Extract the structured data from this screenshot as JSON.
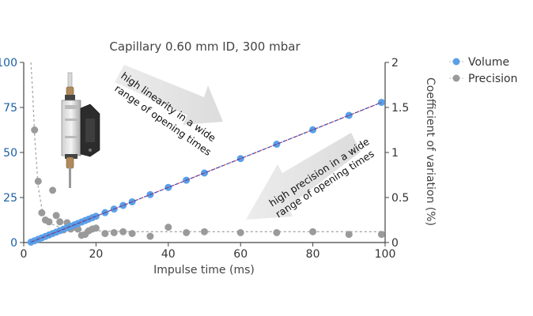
{
  "chart_data": {
    "type": "scatter",
    "title": "Capillary 0.60 mm ID, 300 mbar",
    "xlabel": "Impulse time (ms)",
    "ylabel": "",
    "y2label": "Coefficient of variation (%)",
    "xlim": [
      0,
      100
    ],
    "ylim": [
      0,
      100
    ],
    "y2lim": [
      0,
      2
    ],
    "x_ticks": [
      "0",
      "20",
      "40",
      "60",
      "80",
      "100"
    ],
    "y_ticks": [
      "0",
      "25",
      "50",
      "75",
      "100"
    ],
    "y2_ticks": [
      "0",
      "0.5",
      "1",
      "1.5",
      "2"
    ],
    "legend_position": "top-right",
    "series": [
      {
        "name": "Volume",
        "axis": "left",
        "color": "#5aa0e8",
        "x": [
          2,
          3,
          4,
          5,
          6,
          7,
          8,
          9,
          10,
          11,
          12,
          13,
          14,
          15,
          16,
          17,
          18,
          19,
          20,
          22.5,
          25,
          27.5,
          30,
          35,
          40,
          45,
          50,
          60,
          70,
          80,
          90,
          99
        ],
        "y": [
          0.2,
          1.0,
          1.8,
          2.6,
          3.4,
          4.2,
          5.0,
          5.8,
          6.6,
          7.4,
          8.2,
          9.0,
          9.8,
          10.6,
          11.4,
          12.2,
          13.0,
          13.8,
          14.6,
          16.6,
          18.6,
          20.6,
          22.6,
          26.6,
          30.6,
          34.6,
          38.6,
          46.6,
          54.6,
          62.6,
          70.6,
          77.8
        ],
        "trend": "dashed"
      },
      {
        "name": "Precision",
        "axis": "right",
        "color": "#9a9a9a",
        "x": [
          3,
          4,
          5,
          6,
          7,
          8,
          9,
          10,
          11,
          12,
          13,
          14,
          15,
          16,
          17,
          18,
          19,
          20,
          22.5,
          25,
          27.5,
          30,
          35,
          40,
          45,
          50,
          60,
          70,
          80,
          90,
          99
        ],
        "y": [
          1.25,
          0.68,
          0.33,
          0.25,
          0.23,
          0.58,
          0.3,
          0.23,
          0.14,
          0.22,
          0.15,
          0.17,
          0.15,
          0.08,
          0.09,
          0.13,
          0.15,
          0.16,
          0.1,
          0.11,
          0.12,
          0.1,
          0.07,
          0.17,
          0.11,
          0.12,
          0.11,
          0.11,
          0.12,
          0.09,
          0.09
        ],
        "trend": "dashed",
        "trend_x": [
          2,
          2.5,
          3,
          4,
          5,
          6,
          8,
          10,
          12,
          15,
          20,
          30,
          40,
          60,
          100
        ],
        "trend_y": [
          2.0,
          1.65,
          1.2,
          0.62,
          0.38,
          0.27,
          0.2,
          0.17,
          0.15,
          0.14,
          0.13,
          0.12,
          0.12,
          0.12,
          0.12
        ]
      }
    ],
    "annotations": [
      {
        "id": "linearity",
        "lines": [
          "high linearity in a wide",
          "range of opening times"
        ]
      },
      {
        "id": "precision",
        "lines": [
          "high precision in a wide",
          "range of opening times"
        ]
      }
    ],
    "image": "dispensing-valve-icon"
  }
}
